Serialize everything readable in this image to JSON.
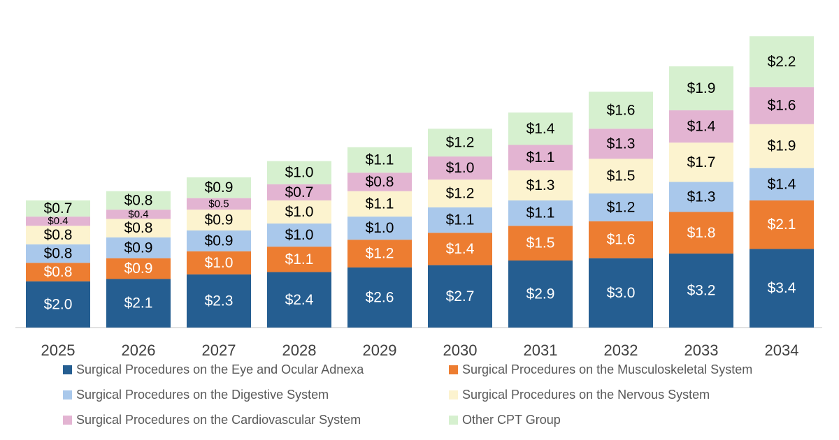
{
  "chart_data": {
    "type": "bar",
    "stacked": true,
    "categories": [
      "2025",
      "2026",
      "2027",
      "2028",
      "2029",
      "2030",
      "2031",
      "2032",
      "2033",
      "2034"
    ],
    "series": [
      {
        "name": "Surgical Procedures on the Eye and Ocular Adnexa",
        "color": "#255E91",
        "label_color": "#ffffff",
        "values": [
          2.0,
          2.1,
          2.3,
          2.4,
          2.6,
          2.7,
          2.9,
          3.0,
          3.2,
          3.4
        ],
        "labels": [
          "$2.0",
          "$2.1",
          "$2.3",
          "$2.4",
          "$2.6",
          "$2.7",
          "$2.9",
          "$3.0",
          "$3.2",
          "$3.4"
        ]
      },
      {
        "name": "Surgical Procedures on the Musculoskeletal System",
        "color": "#ED7D31",
        "label_color": "#ffffff",
        "values": [
          0.8,
          0.9,
          1.0,
          1.1,
          1.2,
          1.4,
          1.5,
          1.6,
          1.8,
          2.1
        ],
        "labels": [
          "$0.8",
          "$0.9",
          "$1.0",
          "$1.1",
          "$1.2",
          "$1.4",
          "$1.5",
          "$1.6",
          "$1.8",
          "$2.1"
        ]
      },
      {
        "name": "Surgical Procedures on the Digestive System",
        "color": "#A9C8EB",
        "label_color": "#000000",
        "values": [
          0.8,
          0.9,
          0.9,
          1.0,
          1.0,
          1.1,
          1.1,
          1.2,
          1.3,
          1.4
        ],
        "labels": [
          "$0.8",
          "$0.9",
          "$0.9",
          "$1.0",
          "$1.0",
          "$1.1",
          "$1.1",
          "$1.2",
          "$1.3",
          "$1.4"
        ]
      },
      {
        "name": "Surgical Procedures on the Nervous System",
        "color": "#FCF3CF",
        "label_color": "#000000",
        "values": [
          0.8,
          0.8,
          0.9,
          1.0,
          1.1,
          1.2,
          1.3,
          1.5,
          1.7,
          1.9
        ],
        "labels": [
          "$0.8",
          "$0.8",
          "$0.9",
          "$1.0",
          "$1.1",
          "$1.2",
          "$1.3",
          "$1.5",
          "$1.7",
          "$1.9"
        ]
      },
      {
        "name": "Surgical Procedures on the Cardiovascular System",
        "color": "#E3B4D2",
        "label_color": "#000000",
        "values": [
          0.4,
          0.4,
          0.5,
          0.7,
          0.8,
          1.0,
          1.1,
          1.3,
          1.4,
          1.6
        ],
        "labels": [
          "$0.4",
          "$0.4",
          "$0.5",
          "$0.7",
          "$0.8",
          "$1.0",
          "$1.1",
          "$1.3",
          "$1.4",
          "$1.6"
        ]
      },
      {
        "name": "Other CPT Group",
        "color": "#D6F0CF",
        "label_color": "#000000",
        "values": [
          0.7,
          0.8,
          0.9,
          1.0,
          1.1,
          1.2,
          1.4,
          1.6,
          1.9,
          2.2
        ],
        "labels": [
          "$0.7",
          "$0.8",
          "$0.9",
          "$1.0",
          "$1.1",
          "$1.2",
          "$1.4",
          "$1.6",
          "$1.9",
          "$2.2"
        ]
      }
    ],
    "title": "",
    "xlabel": "",
    "ylabel": "",
    "ylim": [
      0,
      13
    ],
    "grid": false,
    "legend_position": "bottom"
  }
}
